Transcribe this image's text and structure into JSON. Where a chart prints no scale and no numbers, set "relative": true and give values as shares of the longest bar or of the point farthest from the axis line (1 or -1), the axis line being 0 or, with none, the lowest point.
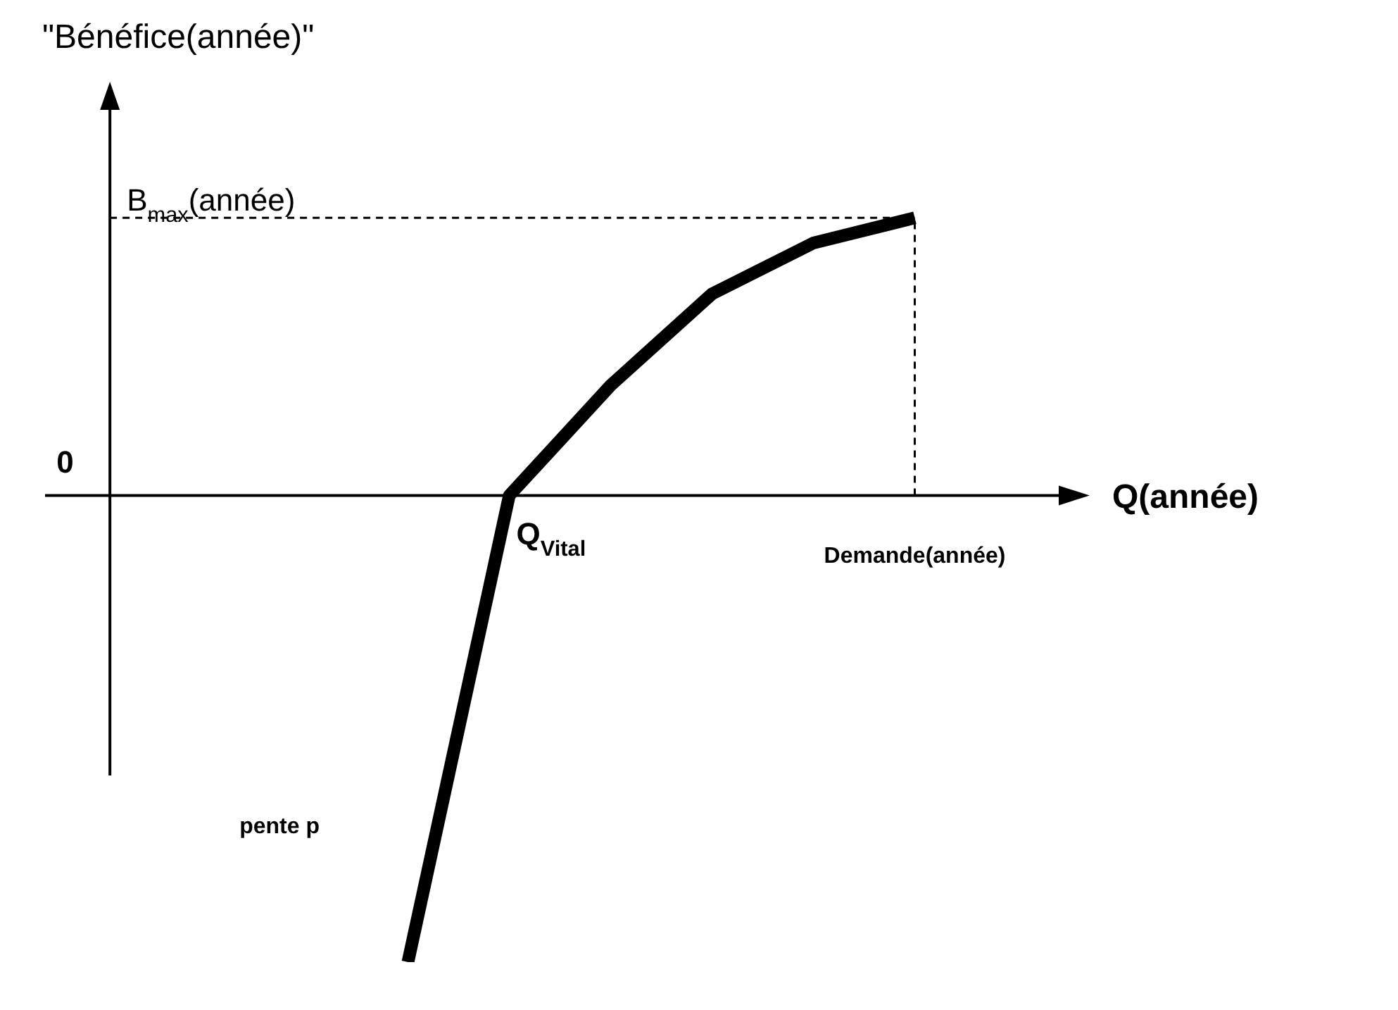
{
  "chart_data": {
    "type": "line",
    "relative": true,
    "ylabel": "\"Bénéfice(année)\"",
    "xlabel": "Q(année)",
    "categories": [
      null,
      null,
      null,
      null,
      null,
      null
    ],
    "series": [
      {
        "color": "#000000",
        "values": [
          -1,
          0,
          0.236,
          0.432,
          0.541,
          0.595
        ]
      }
    ],
    "marker": "none",
    "line_style": "solid",
    "tick_labels": false,
    "annotations": [
      "0",
      "B$_{max}$(année)",
      "Q$_{Vital}$",
      "Demande(année)",
      "pente p"
    ]
  }
}
